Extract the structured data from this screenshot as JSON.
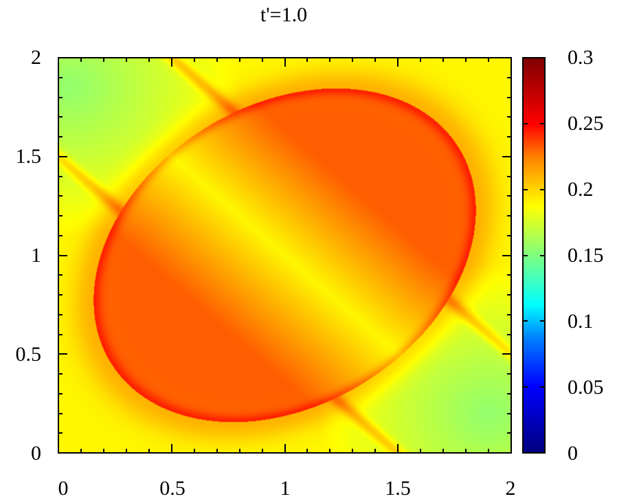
{
  "chart_data": {
    "type": "heatmap",
    "title": "t'=1.0",
    "xlabel": "",
    "ylabel": "",
    "xlim": [
      0,
      2
    ],
    "ylim": [
      0,
      2
    ],
    "x_ticks": [
      "0",
      "0.5",
      "1",
      "1.5",
      "2"
    ],
    "y_ticks": [
      "0",
      "0.5",
      "1",
      "1.5",
      "2"
    ],
    "colorbar": {
      "range": [
        0,
        0.3
      ],
      "ticks": [
        "0",
        "0.05",
        "0.1",
        "0.15",
        "0.2",
        "0.25",
        "0.3"
      ],
      "colormap": "jet"
    },
    "description": "2D intensity map over [0,2]x[0,2]; values ~0.15-0.25. Greenish (~0.15-0.16) corners at top-left and bottom-right; two orange-red (~0.22-0.24) lobes centered near (0.6,0.7) and (1.3,1.4) bounded by a distorted ring; yellow (~0.19) diagonal band from (0,1.5) to (1.5,0) and around the ring; sharp ridges along lines x+y≈1.5 (upper-left) and x+y≈2.0, and along the ring boundary.",
    "grid": false,
    "legend_position": "colorbar-right"
  },
  "axes": {
    "x_labels": [
      "0",
      "0.5",
      "1",
      "1.5",
      "2"
    ],
    "y_labels": [
      "0",
      "0.5",
      "1",
      "1.5",
      "2"
    ]
  },
  "colorbar_labels": [
    "0.3",
    "0.25",
    "0.2",
    "0.15",
    "0.1",
    "0.05",
    "0"
  ]
}
